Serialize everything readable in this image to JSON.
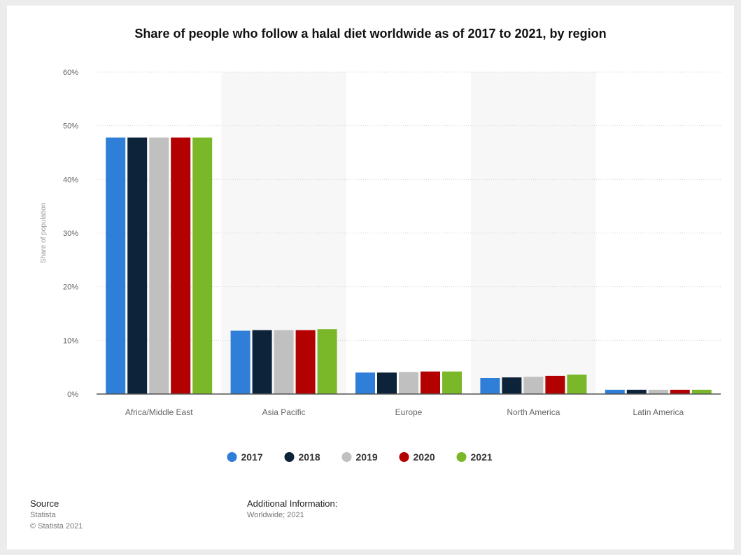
{
  "chart_data": {
    "type": "bar",
    "title": "Share of people who follow a halal diet worldwide as of 2017 to 2021, by region",
    "ylabel": "Share of population",
    "xlabel": "",
    "ylim": [
      0,
      60
    ],
    "yticks": [
      0,
      10,
      20,
      30,
      40,
      50,
      60
    ],
    "ytick_labels": [
      "0%",
      "10%",
      "20%",
      "30%",
      "40%",
      "50%",
      "60%"
    ],
    "categories": [
      "Africa/Middle East",
      "Asia Pacific",
      "Europe",
      "North America",
      "Latin America"
    ],
    "series": [
      {
        "name": "2017",
        "color": "#2f7ed8",
        "values": [
          47.8,
          11.8,
          4.0,
          3.0,
          0.8
        ]
      },
      {
        "name": "2018",
        "color": "#0d233a",
        "values": [
          47.8,
          11.9,
          4.0,
          3.1,
          0.8
        ]
      },
      {
        "name": "2019",
        "color": "#c0c0c0",
        "values": [
          47.8,
          11.9,
          4.1,
          3.2,
          0.8
        ]
      },
      {
        "name": "2020",
        "color": "#b30000",
        "values": [
          47.8,
          11.9,
          4.2,
          3.4,
          0.8
        ]
      },
      {
        "name": "2021",
        "color": "#7ab829",
        "values": [
          47.8,
          12.1,
          4.2,
          3.6,
          0.8
        ]
      }
    ],
    "grid": true,
    "legend_position": "bottom"
  },
  "footer": {
    "source_heading": "Source",
    "source_name": "Statista",
    "copyright": "© Statista 2021",
    "info_heading": "Additional Information:",
    "info_text": "Worldwide; 2021"
  }
}
